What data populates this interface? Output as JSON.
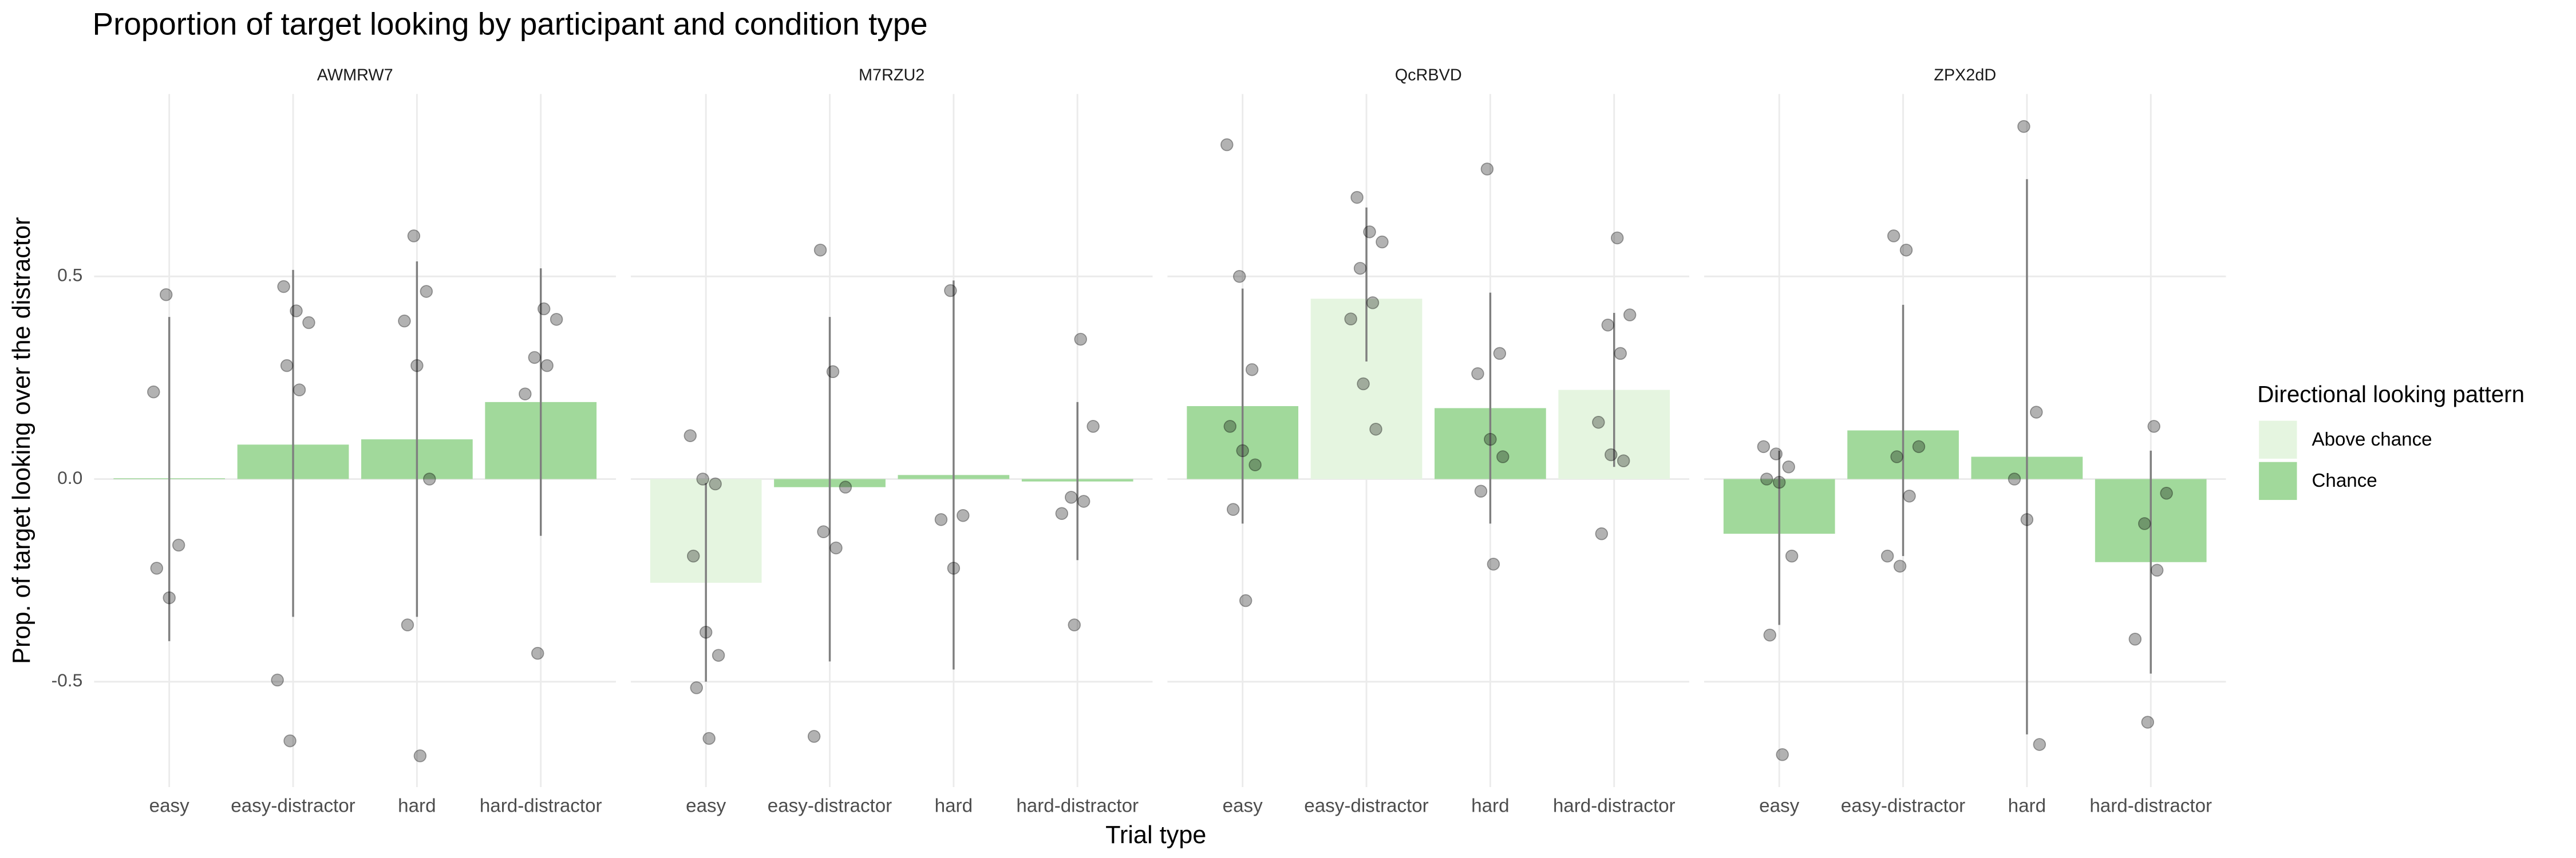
{
  "chart_data": {
    "type": "bar",
    "title": "Proportion of target looking by participant and condition type",
    "x_label": "Trial type",
    "y_label": "Prop. of target looking over the distractor",
    "ylim": [
      -0.76,
      0.95
    ],
    "yticks": [
      -0.5,
      {
        "value": 0,
        "label": "0.0"
      },
      0.5
    ],
    "grid": true,
    "legend": {
      "title": "Directional looking pattern",
      "position": "right",
      "entries": [
        {
          "name": "Above chance",
          "color": "#e5f5e0"
        },
        {
          "name": "Chance",
          "color": "#a1d99b"
        }
      ]
    },
    "facets": [
      {
        "title": "AWMRW7",
        "categories": [
          "easy",
          "easy-distractor",
          "hard",
          "hard-distractor"
        ],
        "values": [
          0.002,
          0.085,
          0.098,
          0.19
        ],
        "groups": [
          "Chance",
          "Chance",
          "Chance",
          "Chance"
        ],
        "ci": [
          [
            -0.4,
            0.4
          ],
          [
            -0.34,
            0.516
          ],
          [
            -0.34,
            0.537
          ],
          [
            -0.14,
            0.52
          ]
        ],
        "points": [
          [
            0.215,
            0.455,
            -0.163,
            -0.22,
            -0.293
          ],
          [
            0.475,
            0.415,
            0.386,
            0.28,
            0.22,
            -0.496,
            -0.646
          ],
          [
            0.6,
            0.463,
            0.39,
            0.28,
            0.0,
            -0.36,
            -0.683
          ],
          [
            0.42,
            0.394,
            0.3,
            0.28,
            0.21,
            -0.43
          ]
        ]
      },
      {
        "title": "M7RZU2",
        "categories": [
          "easy",
          "easy-distractor",
          "hard",
          "hard-distractor"
        ],
        "values": [
          -0.256,
          -0.02,
          0.01,
          -0.006
        ],
        "groups": [
          "Above chance",
          "Chance",
          "Chance",
          "Chance"
        ],
        "ci": [
          [
            -0.5,
            -0.01
          ],
          [
            -0.45,
            0.4
          ],
          [
            -0.47,
            0.49
          ],
          [
            -0.2,
            0.19
          ]
        ],
        "points": [
          [
            0.107,
            0.0,
            -0.012,
            -0.19,
            -0.378,
            -0.435,
            -0.515,
            -0.64
          ],
          [
            0.565,
            0.265,
            -0.02,
            -0.13,
            -0.17,
            -0.635
          ],
          [
            0.465,
            -0.09,
            -0.1,
            -0.22
          ],
          [
            0.345,
            0.13,
            -0.045,
            -0.055,
            -0.085,
            -0.36
          ]
        ]
      },
      {
        "title": "QcRBVD",
        "categories": [
          "easy",
          "easy-distractor",
          "hard",
          "hard-distractor"
        ],
        "values": [
          0.18,
          0.445,
          0.175,
          0.22
        ],
        "groups": [
          "Chance",
          "Above chance",
          "Chance",
          "Above chance"
        ],
        "ci": [
          [
            -0.11,
            0.47
          ],
          [
            0.29,
            0.67
          ],
          [
            -0.11,
            0.46
          ],
          [
            0.03,
            0.41
          ]
        ],
        "points": [
          [
            0.825,
            0.5,
            0.27,
            0.13,
            0.07,
            0.035,
            -0.075,
            -0.3
          ],
          [
            0.695,
            0.61,
            0.585,
            0.52,
            0.435,
            0.395,
            0.235,
            0.123
          ],
          [
            0.765,
            0.31,
            0.26,
            0.098,
            0.055,
            -0.03,
            -0.21
          ],
          [
            0.595,
            0.405,
            0.38,
            0.31,
            0.14,
            0.06,
            0.045,
            -0.135
          ]
        ]
      },
      {
        "title": "ZPX2dD",
        "categories": [
          "easy",
          "easy-distractor",
          "hard",
          "hard-distractor"
        ],
        "values": [
          -0.135,
          0.12,
          0.055,
          -0.205
        ],
        "groups": [
          "Chance",
          "Chance",
          "Chance",
          "Chance"
        ],
        "ci": [
          [
            -0.36,
            0.07
          ],
          [
            -0.19,
            0.43
          ],
          [
            -0.63,
            0.74
          ],
          [
            -0.48,
            0.07
          ]
        ],
        "points": [
          [
            0.08,
            0.062,
            0.03,
            0.0,
            -0.008,
            -0.19,
            -0.385,
            -0.68
          ],
          [
            0.6,
            0.565,
            0.08,
            0.055,
            -0.042,
            -0.19,
            -0.215
          ],
          [
            0.87,
            0.165,
            0.0,
            -0.1,
            -0.655
          ],
          [
            0.13,
            -0.035,
            -0.11,
            -0.225,
            -0.395,
            -0.6
          ]
        ]
      }
    ]
  }
}
